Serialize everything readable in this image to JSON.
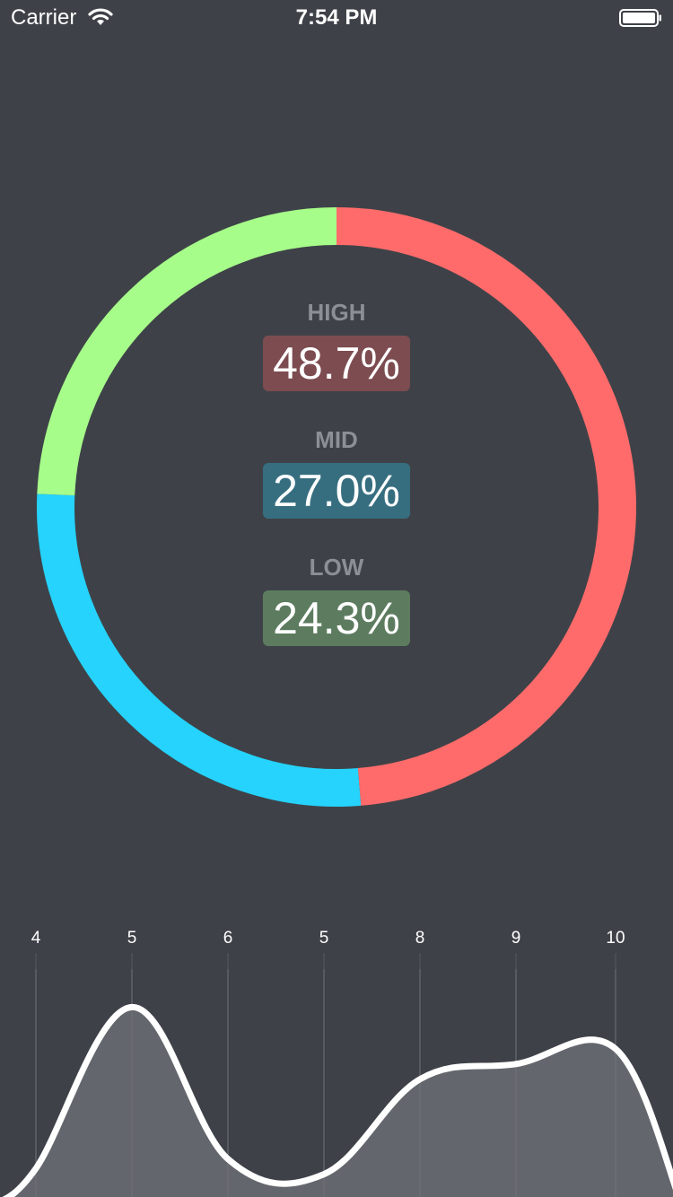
{
  "status_bar": {
    "carrier": "Carrier",
    "time": "7:54 PM"
  },
  "colors": {
    "background": "#3e4248",
    "high": "#ff6b6b",
    "mid": "#25d3fc",
    "low": "#a7fd8a",
    "high_badge": "#7c4c50",
    "mid_badge": "#366e80",
    "low_badge": "#5d7c5f",
    "area_fill": "#63666c",
    "area_line": "#ffffff"
  },
  "stats": [
    {
      "key": "high",
      "label": "HIGH",
      "value_text": "48.7%"
    },
    {
      "key": "mid",
      "label": "MID",
      "value_text": "27.0%"
    },
    {
      "key": "low",
      "label": "LOW",
      "value_text": "24.3%"
    }
  ],
  "chart_data": [
    {
      "type": "pie",
      "style": "donut",
      "start": "top",
      "direction": "clockwise",
      "categories": [
        "HIGH",
        "MID",
        "LOW"
      ],
      "values": [
        48.7,
        27.0,
        24.3
      ]
    },
    {
      "type": "area",
      "categories": [
        "4",
        "5",
        "6",
        "5",
        "8",
        "9",
        "10"
      ],
      "values": [
        4,
        5,
        6,
        5,
        8,
        9,
        10
      ],
      "series": [
        {
          "values": [
            1.5,
            10,
            2,
            1.2,
            6.2,
            7,
            7.8
          ]
        }
      ],
      "ylim": [
        0,
        12
      ],
      "grid": true,
      "smooth": true
    }
  ]
}
